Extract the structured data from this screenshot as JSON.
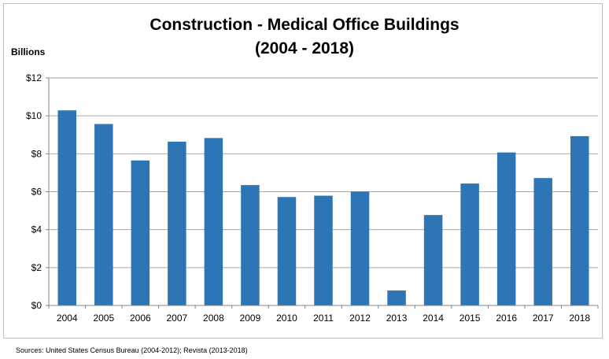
{
  "chart_data": {
    "type": "bar",
    "title": "Construction - Medical Office Buildings",
    "subtitle": "(2004 - 2018)",
    "ylabel": "Billions",
    "xlabel": "",
    "categories": [
      "2004",
      "2005",
      "2006",
      "2007",
      "2008",
      "2009",
      "2010",
      "2011",
      "2012",
      "2013",
      "2014",
      "2015",
      "2016",
      "2017",
      "2018"
    ],
    "values": [
      10.29,
      9.57,
      7.65,
      8.64,
      8.83,
      6.35,
      5.72,
      5.79,
      6.01,
      0.79,
      4.77,
      6.43,
      8.07,
      6.72,
      8.93
    ],
    "ylim": [
      0,
      12
    ],
    "yticks": [
      0,
      2,
      4,
      6,
      8,
      10,
      12
    ],
    "ytick_labels": [
      "$0",
      "$2",
      "$4",
      "$6",
      "$8",
      "$10",
      "$12"
    ],
    "grid": true,
    "legend": "none",
    "bar_color": "#2e75b6",
    "source": "Sources:  United States Census Bureau (2004-2012); Revista (2013-2018)"
  }
}
